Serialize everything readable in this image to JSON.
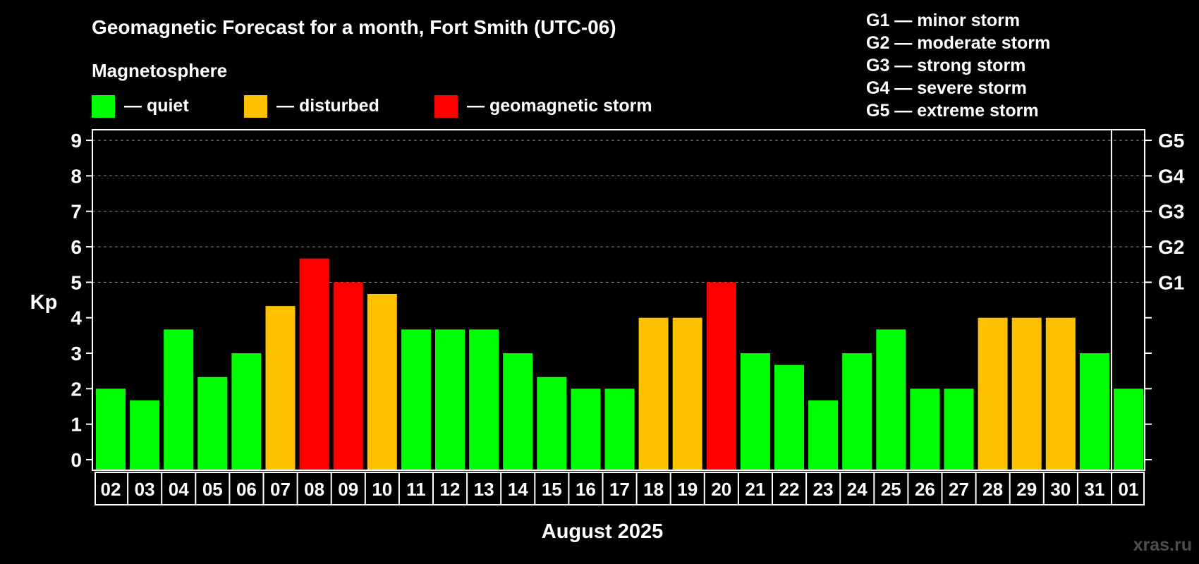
{
  "title": "Geomagnetic Forecast for a month, Fort Smith (UTC-06)",
  "legend": {
    "heading": "Magnetosphere",
    "items": [
      {
        "label": "— quiet",
        "color": "#00ff00"
      },
      {
        "label": "— disturbed",
        "color": "#ffc000"
      },
      {
        "label": "— geomagnetic storm",
        "color": "#ff0000"
      }
    ]
  },
  "g_scale": [
    "G1 — minor storm",
    "G2 — moderate storm",
    "G3 — strong storm",
    "G4 — severe storm",
    "G5 — extreme storm"
  ],
  "watermark": "xras.ru",
  "chart_data": {
    "type": "bar",
    "ylabel": "Kp",
    "xlabel": "August 2025",
    "ylim": [
      0,
      9.3
    ],
    "yticks": [
      0,
      1,
      2,
      3,
      4,
      5,
      6,
      7,
      8,
      9
    ],
    "right_ticks": [
      {
        "value": 5,
        "label": "G1"
      },
      {
        "value": 6,
        "label": "G2"
      },
      {
        "value": 7,
        "label": "G3"
      },
      {
        "value": 8,
        "label": "G4"
      },
      {
        "value": 9,
        "label": "G5"
      }
    ],
    "grid": "dashed horizontal at 5-9",
    "categories": [
      "02",
      "03",
      "04",
      "05",
      "06",
      "07",
      "08",
      "09",
      "10",
      "11",
      "12",
      "13",
      "14",
      "15",
      "16",
      "17",
      "18",
      "19",
      "20",
      "21",
      "22",
      "23",
      "24",
      "25",
      "26",
      "27",
      "28",
      "29",
      "30",
      "31",
      "01"
    ],
    "values": [
      2.0,
      1.67,
      3.67,
      2.33,
      3.0,
      4.33,
      5.67,
      5.0,
      4.67,
      3.67,
      3.67,
      3.67,
      3.0,
      2.33,
      2.0,
      2.0,
      4.0,
      4.0,
      5.0,
      3.0,
      2.67,
      1.67,
      3.0,
      3.67,
      2.0,
      2.0,
      4.0,
      4.0,
      4.0,
      3.0,
      2.0
    ],
    "levels": [
      "quiet",
      "quiet",
      "quiet",
      "quiet",
      "quiet",
      "disturbed",
      "storm",
      "storm",
      "disturbed",
      "quiet",
      "quiet",
      "quiet",
      "quiet",
      "quiet",
      "quiet",
      "quiet",
      "disturbed",
      "disturbed",
      "storm",
      "quiet",
      "quiet",
      "quiet",
      "quiet",
      "quiet",
      "quiet",
      "quiet",
      "disturbed",
      "disturbed",
      "disturbed",
      "quiet",
      "quiet"
    ],
    "level_colors": {
      "quiet": "#00ff00",
      "disturbed": "#ffc000",
      "storm": "#ff0000"
    },
    "month_break_after": "31"
  }
}
